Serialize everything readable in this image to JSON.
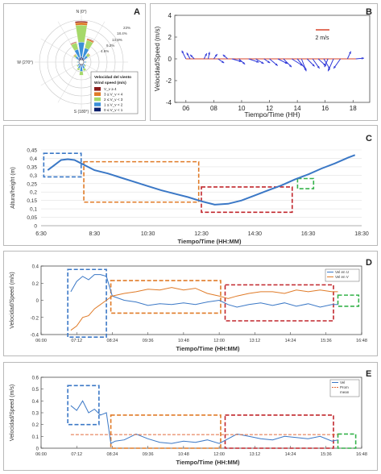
{
  "panel_letters": {
    "a": "A",
    "b": "B",
    "c": "C",
    "d": "D",
    "e": "E"
  },
  "colors": {
    "blue": "#3b78c6",
    "dark_blue": "#1f3fbf",
    "orange": "#e07b28",
    "red": "#c1272d",
    "green": "#35b24a",
    "arrow": "#2f38d8",
    "ref": "#d9452b"
  },
  "chart_data": [
    {
      "panel": "A",
      "type": "windrose",
      "compass_labels": {
        "n": "N (0°)",
        "w": "W (270°)",
        "s": "S (180°)"
      },
      "ring_labels": [
        "23%",
        "18.4%",
        "13.8%",
        "9.2%",
        "4.6%"
      ],
      "legend_title": [
        "Velocidad del viento",
        "Wind speed (m/s)"
      ],
      "legend_items": [
        {
          "label": "V_v ≥ 4",
          "color": "#8b1a1a"
        },
        {
          "label": "3 ≤ V_v < 4",
          "color": "#e07b28"
        },
        {
          "label": "2 ≤ V_v < 3",
          "color": "#a6d96a"
        },
        {
          "label": "1 ≤ V_v < 2",
          "color": "#3b8fd9"
        },
        {
          "label": "0 ≤ V_v < 1",
          "color": "#0b1e6b"
        }
      ]
    },
    {
      "panel": "B",
      "type": "quiver",
      "xlabel": "Tiempo/Time (HH)",
      "ylabel": "Velocidad/Speed (m/s)",
      "xticks": [
        6,
        8,
        10,
        12,
        14,
        16,
        18
      ],
      "yticks": [
        -4,
        -2,
        0,
        2,
        4
      ],
      "xlim": [
        5.2,
        19.2
      ],
      "ylim": [
        -4,
        4
      ],
      "scale_label": "2 m/s",
      "vectors": [
        {
          "t": 6.0,
          "u": -0.6,
          "v": 1.2
        },
        {
          "t": 6.3,
          "u": -0.5,
          "v": 0.9
        },
        {
          "t": 6.6,
          "u": -0.6,
          "v": 0.6
        },
        {
          "t": 7.3,
          "u": 0.4,
          "v": 0.8
        },
        {
          "t": 7.6,
          "u": 0.2,
          "v": 1.0
        },
        {
          "t": 8.0,
          "u": 0.5,
          "v": 0.7
        },
        {
          "t": 8.3,
          "u": 0.9,
          "v": -0.6
        },
        {
          "t": 9.0,
          "u": -0.7,
          "v": 0.6
        },
        {
          "t": 9.3,
          "u": 1.4,
          "v": -0.4
        },
        {
          "t": 9.8,
          "u": 0.9,
          "v": -0.8
        },
        {
          "t": 10.5,
          "u": 1.5,
          "v": -0.5
        },
        {
          "t": 11.0,
          "u": 1.2,
          "v": -0.7
        },
        {
          "t": 11.6,
          "u": 0.9,
          "v": -0.6
        },
        {
          "t": 12.0,
          "u": 1.2,
          "v": -1.0
        },
        {
          "t": 12.6,
          "u": 1.4,
          "v": -0.7
        },
        {
          "t": 13.0,
          "u": 1.2,
          "v": -1.2
        },
        {
          "t": 13.6,
          "u": 1.6,
          "v": -1.0
        },
        {
          "t": 14.0,
          "u": 1.3,
          "v": -1.6
        },
        {
          "t": 14.3,
          "u": 0.7,
          "v": -1.8
        },
        {
          "t": 14.7,
          "u": 1.1,
          "v": -1.1
        },
        {
          "t": 15.1,
          "u": 1.0,
          "v": -1.4
        },
        {
          "t": 15.5,
          "u": 1.1,
          "v": -1.0
        },
        {
          "t": 15.9,
          "u": 0.9,
          "v": -1.5
        },
        {
          "t": 16.2,
          "u": -0.5,
          "v": -1.2
        },
        {
          "t": 16.6,
          "u": -0.8,
          "v": -1.8
        },
        {
          "t": 17.1,
          "u": -1.0,
          "v": -1.4
        },
        {
          "t": 17.6,
          "u": 0.5,
          "v": 1.1
        },
        {
          "t": 18.2,
          "u": 1.2,
          "v": 0.1
        }
      ]
    },
    {
      "panel": "C",
      "type": "line",
      "xlabel": "Tiempo/Time   (HH:MM)",
      "ylabel": "Altura/height (m)",
      "xticks": [
        "6:30",
        "8:30",
        "10:30",
        "12:30",
        "14:30",
        "16:30",
        "18:30"
      ],
      "yticks": [
        "0",
        "0,05",
        "0,1",
        "0,15",
        "0,2",
        "0,25",
        "0,3",
        "0,35",
        "0,4",
        "0,45"
      ],
      "ylim": [
        0,
        0.45
      ],
      "xlim": [
        6.5,
        18.5
      ],
      "x": [
        6.75,
        7.0,
        7.25,
        7.5,
        7.75,
        8.0,
        8.25,
        8.5,
        9.0,
        9.5,
        10.0,
        10.5,
        11.0,
        11.5,
        12.0,
        12.5,
        13.0,
        13.5,
        14.0,
        14.5,
        15.0,
        15.5,
        16.0,
        16.5,
        17.0,
        17.5,
        18.0,
        18.25
      ],
      "y": [
        0.33,
        0.36,
        0.39,
        0.395,
        0.39,
        0.37,
        0.35,
        0.33,
        0.31,
        0.285,
        0.26,
        0.235,
        0.21,
        0.19,
        0.17,
        0.145,
        0.125,
        0.13,
        0.15,
        0.18,
        0.21,
        0.24,
        0.275,
        0.305,
        0.34,
        0.37,
        0.405,
        0.42
      ]
    },
    {
      "panel": "D",
      "type": "line",
      "xlabel": "Tiempo/Time   (HH:MM)",
      "ylabel": "Velocidad/Speed (m/s)",
      "xticks": [
        "06:00",
        "07:12",
        "08:24",
        "09:36",
        "10:48",
        "12:00",
        "13:12",
        "14:24",
        "15:36",
        "16:48"
      ],
      "yticks": [
        "-0.4",
        "-0.2",
        "0",
        "0.2",
        "0.4"
      ],
      "ylim": [
        -0.4,
        0.4
      ],
      "series": [
        {
          "name": "Vel en U",
          "color": "#3b78c6",
          "x": [
            7.0,
            7.2,
            7.4,
            7.6,
            7.8,
            8.0,
            8.2,
            8.4,
            8.8,
            9.2,
            9.6,
            10.0,
            10.4,
            10.8,
            11.2,
            11.6,
            12.0,
            12.3,
            12.6,
            13.0,
            13.4,
            13.8,
            14.2,
            14.6,
            15.0,
            15.4,
            15.8,
            16.0
          ],
          "y": [
            0.1,
            0.22,
            0.28,
            0.24,
            0.3,
            0.3,
            0.28,
            0.05,
            0.0,
            -0.02,
            -0.06,
            -0.04,
            -0.05,
            -0.03,
            -0.05,
            -0.02,
            0.0,
            -0.05,
            -0.08,
            -0.05,
            -0.03,
            -0.06,
            -0.03,
            -0.07,
            -0.04,
            -0.08,
            -0.05,
            -0.05
          ]
        },
        {
          "name": "Vel en V",
          "color": "#e07b28",
          "x": [
            7.0,
            7.2,
            7.4,
            7.6,
            7.8,
            8.0,
            8.2,
            8.4,
            8.8,
            9.2,
            9.6,
            10.0,
            10.4,
            10.8,
            11.2,
            11.6,
            12.0,
            12.3,
            12.6,
            13.0,
            13.4,
            13.8,
            14.2,
            14.6,
            15.0,
            15.4,
            15.8,
            16.0
          ],
          "y": [
            -0.35,
            -0.3,
            -0.2,
            -0.18,
            -0.1,
            -0.05,
            0.0,
            0.05,
            0.08,
            0.1,
            0.13,
            0.12,
            0.15,
            0.12,
            0.14,
            0.08,
            0.05,
            0.02,
            0.05,
            0.08,
            0.1,
            0.1,
            0.08,
            0.12,
            0.1,
            0.12,
            0.1,
            0.1
          ]
        }
      ]
    },
    {
      "panel": "E",
      "type": "line",
      "xlabel": "Tiempo/Time   (HH:MM)",
      "ylabel": "Velocidad/Speed (m/s)",
      "xticks": [
        "06:00",
        "07:12",
        "08:24",
        "09:36",
        "10:48",
        "12:00",
        "13:12",
        "14:24",
        "15:36",
        "16:48"
      ],
      "yticks": [
        "0",
        "0.1",
        "0.2",
        "0.3",
        "0.4",
        "0.5",
        "0.6"
      ],
      "ylim": [
        0,
        0.6
      ],
      "legend": [
        "Vel",
        "Prom",
        "mean"
      ],
      "series": [
        {
          "name": "Vel",
          "color": "#3b78c6",
          "x": [
            7.0,
            7.2,
            7.4,
            7.6,
            7.8,
            8.0,
            8.2,
            8.35,
            8.5,
            8.8,
            9.2,
            9.6,
            10.0,
            10.4,
            10.8,
            11.2,
            11.6,
            12.0,
            12.3,
            12.6,
            13.0,
            13.4,
            13.8,
            14.2,
            14.6,
            15.0,
            15.4,
            15.8,
            16.0
          ],
          "y": [
            0.36,
            0.32,
            0.4,
            0.3,
            0.33,
            0.28,
            0.3,
            0.04,
            0.06,
            0.07,
            0.12,
            0.08,
            0.05,
            0.04,
            0.06,
            0.05,
            0.07,
            0.04,
            0.08,
            0.12,
            0.1,
            0.08,
            0.07,
            0.1,
            0.09,
            0.08,
            0.1,
            0.06,
            0.07
          ]
        },
        {
          "name": "Prom",
          "color": "#e26a3a",
          "dashed": true,
          "x": [
            7.0,
            16.0
          ],
          "y": [
            0.115,
            0.115
          ]
        }
      ]
    }
  ]
}
